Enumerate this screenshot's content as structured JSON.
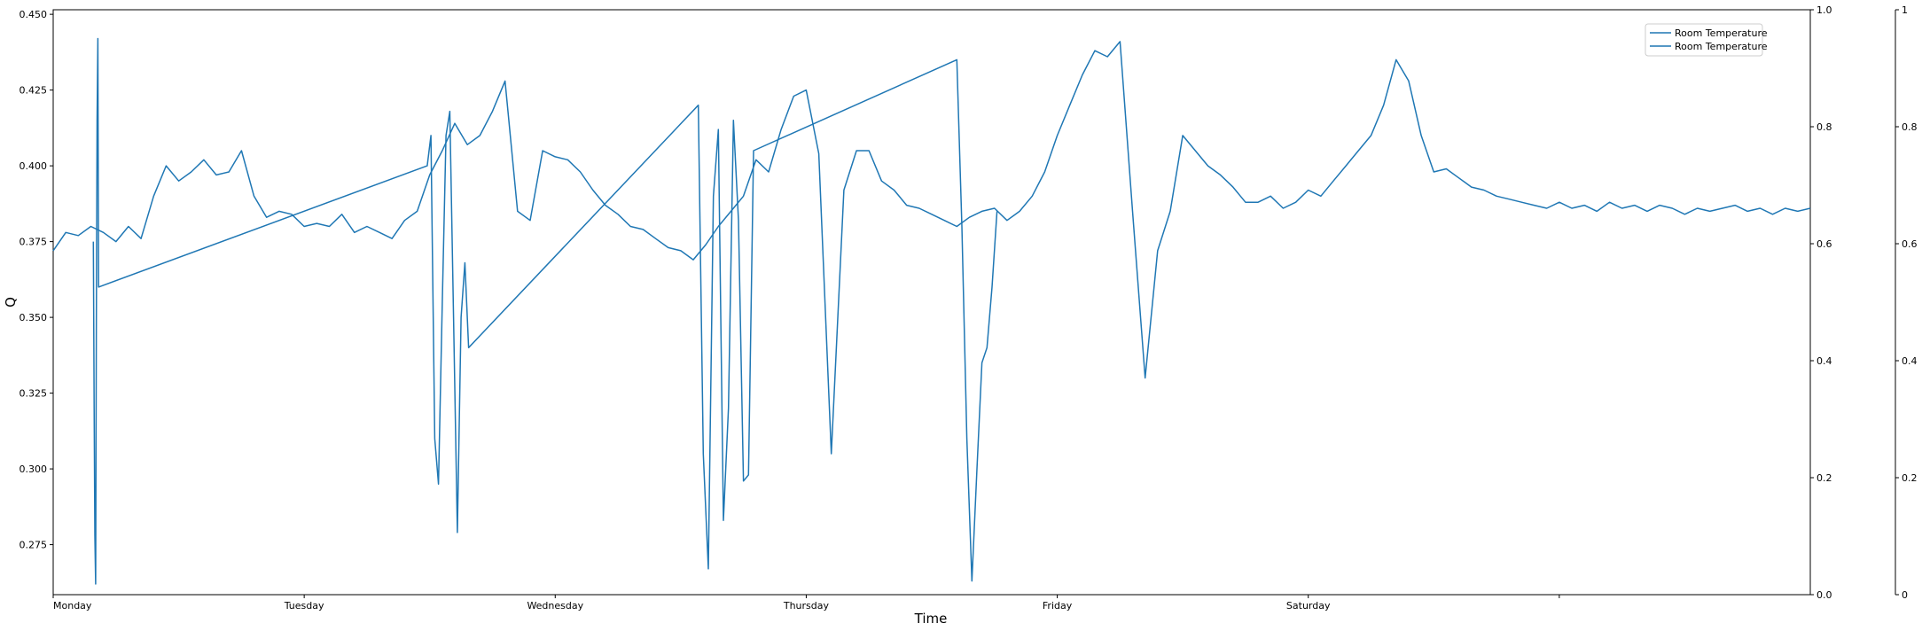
{
  "chart_data": {
    "type": "line",
    "title": "",
    "xlabel": "Time",
    "ylabel": "Q",
    "x_categories": [
      "Monday",
      "Tuesday",
      "Wednesday",
      "Thursday",
      "Friday",
      "Saturday",
      ""
    ],
    "xlim": [
      0,
      7
    ],
    "ylim": [
      0.2585,
      0.4515
    ],
    "yticks": [
      "0.275",
      "0.300",
      "0.325",
      "0.350",
      "0.375",
      "0.400",
      "0.425",
      "0.450"
    ],
    "ytick_values": [
      0.275,
      0.3,
      0.325,
      0.35,
      0.375,
      0.4,
      0.425,
      0.45
    ],
    "right_axis_1": {
      "ylim": [
        0,
        1
      ],
      "ticks": [
        "0.0",
        "0.2",
        "0.4",
        "0.6",
        "0.8",
        "1.0"
      ],
      "tick_values": [
        0,
        0.2,
        0.4,
        0.6,
        0.8,
        1.0
      ]
    },
    "right_axis_2": {
      "ylim": [
        0,
        1
      ],
      "ticks": [
        "0",
        "0.2",
        "0.4",
        "0.6",
        "0.8",
        "1"
      ],
      "tick_values": [
        0,
        0.2,
        0.4,
        0.6,
        0.8,
        1
      ]
    },
    "legend": {
      "placement": "top-right",
      "entries": [
        "Room Temperature",
        "Room Temperature"
      ]
    },
    "colors": {
      "line": "#1f77b4",
      "axis": "#000000"
    },
    "series": [
      {
        "name": "Room Temperature",
        "x": [
          0,
          0.05,
          0.1,
          0.15,
          0.2,
          0.25,
          0.3,
          0.35,
          0.4,
          0.45,
          0.5,
          0.55,
          0.6,
          0.65,
          0.7,
          0.75,
          0.8,
          0.85,
          0.9,
          0.95,
          1.0,
          1.05,
          1.1,
          1.15,
          1.2,
          1.25,
          1.3,
          1.35,
          1.4,
          1.45,
          1.5,
          1.55,
          1.6,
          1.65,
          1.7,
          1.75,
          1.8,
          1.85,
          1.9,
          1.95,
          2.0,
          2.05,
          2.1,
          2.15,
          2.2,
          2.25,
          2.3,
          2.35,
          2.4,
          2.45,
          2.5,
          2.55,
          2.6,
          2.65,
          2.7,
          2.75,
          2.8,
          2.85,
          2.9,
          2.95,
          3.0,
          3.05,
          3.1,
          3.15,
          3.2,
          3.25,
          3.3,
          3.35,
          3.4,
          3.45,
          3.5,
          3.55,
          3.6,
          3.65,
          3.7,
          3.75,
          3.8,
          3.85,
          3.9,
          3.95,
          4.0,
          4.05,
          4.1,
          4.15,
          4.2,
          4.25,
          4.3,
          4.35,
          4.4,
          4.45,
          4.5,
          4.55,
          4.6,
          4.65,
          4.7,
          4.75,
          4.8,
          4.85,
          4.9,
          4.95,
          5.0,
          5.05,
          5.1,
          5.15,
          5.2,
          5.25,
          5.3,
          5.35,
          5.4,
          5.45,
          5.5,
          5.55,
          5.6,
          5.65,
          5.7,
          5.75,
          5.8,
          5.85,
          5.9,
          5.95,
          6.0,
          6.05,
          6.1,
          6.15,
          6.2,
          6.25,
          6.3,
          6.35,
          6.4,
          6.45,
          6.5,
          6.55,
          6.6,
          6.65,
          6.7,
          6.75,
          6.8,
          6.85,
          6.9,
          6.95,
          7.0
        ],
        "y": [
          0.372,
          0.378,
          0.377,
          0.38,
          0.378,
          0.375,
          0.38,
          0.376,
          0.39,
          0.4,
          0.395,
          0.398,
          0.402,
          0.397,
          0.398,
          0.405,
          0.39,
          0.383,
          0.385,
          0.384,
          0.38,
          0.381,
          0.38,
          0.384,
          0.378,
          0.38,
          0.378,
          0.376,
          0.382,
          0.385,
          0.397,
          0.405,
          0.414,
          0.407,
          0.41,
          0.418,
          0.428,
          0.385,
          0.382,
          0.405,
          0.403,
          0.402,
          0.398,
          0.392,
          0.387,
          0.384,
          0.38,
          0.379,
          0.376,
          0.373,
          0.372,
          0.369,
          0.374,
          0.38,
          0.385,
          0.39,
          0.402,
          0.398,
          0.412,
          0.423,
          0.425,
          0.404,
          0.305,
          0.392,
          0.405,
          0.405,
          0.395,
          0.392,
          0.387,
          0.386,
          0.384,
          0.382,
          0.38,
          0.383,
          0.385,
          0.386,
          0.382,
          0.385,
          0.39,
          0.398,
          0.41,
          0.42,
          0.43,
          0.438,
          0.436,
          0.441,
          0.385,
          0.33,
          0.372,
          0.385,
          0.41,
          0.405,
          0.4,
          0.397,
          0.393,
          0.388,
          0.388,
          0.39,
          0.386,
          0.388,
          0.392,
          0.39,
          0.395,
          0.4,
          0.405,
          0.41,
          0.42,
          0.435,
          0.428,
          0.41,
          0.398,
          0.399,
          0.396,
          0.393,
          0.392,
          0.39,
          0.389,
          0.388,
          0.387,
          0.386,
          0.388,
          0.386,
          0.387,
          0.385,
          0.388,
          0.386,
          0.387,
          0.385,
          0.387,
          0.386,
          0.384,
          0.386,
          0.385,
          0.386,
          0.387,
          0.385,
          0.386,
          0.384,
          0.386,
          0.385,
          0.386
        ]
      },
      {
        "name": "Room Temperature",
        "x": [
          0.16,
          0.163,
          0.166,
          0.169,
          0.172,
          0.175,
          0.178,
          0.181,
          1.49,
          1.505,
          1.52,
          1.535,
          1.55,
          1.565,
          1.58,
          1.595,
          1.61,
          1.625,
          1.64,
          1.655,
          2.57,
          2.59,
          2.61,
          2.63,
          2.65,
          2.67,
          2.69,
          2.71,
          2.73,
          2.75,
          2.77,
          2.79,
          3.6,
          3.62,
          3.64,
          3.66,
          3.68,
          3.7,
          3.72,
          3.74,
          3.76
        ],
        "y": [
          0.375,
          0.32,
          0.278,
          0.262,
          0.35,
          0.415,
          0.442,
          0.36,
          0.4,
          0.41,
          0.31,
          0.295,
          0.355,
          0.41,
          0.418,
          0.35,
          0.279,
          0.35,
          0.368,
          0.34,
          0.42,
          0.305,
          0.267,
          0.39,
          0.412,
          0.283,
          0.32,
          0.415,
          0.382,
          0.296,
          0.298,
          0.405,
          0.435,
          0.38,
          0.31,
          0.263,
          0.3,
          0.335,
          0.34,
          0.36,
          0.385
        ]
      }
    ]
  }
}
